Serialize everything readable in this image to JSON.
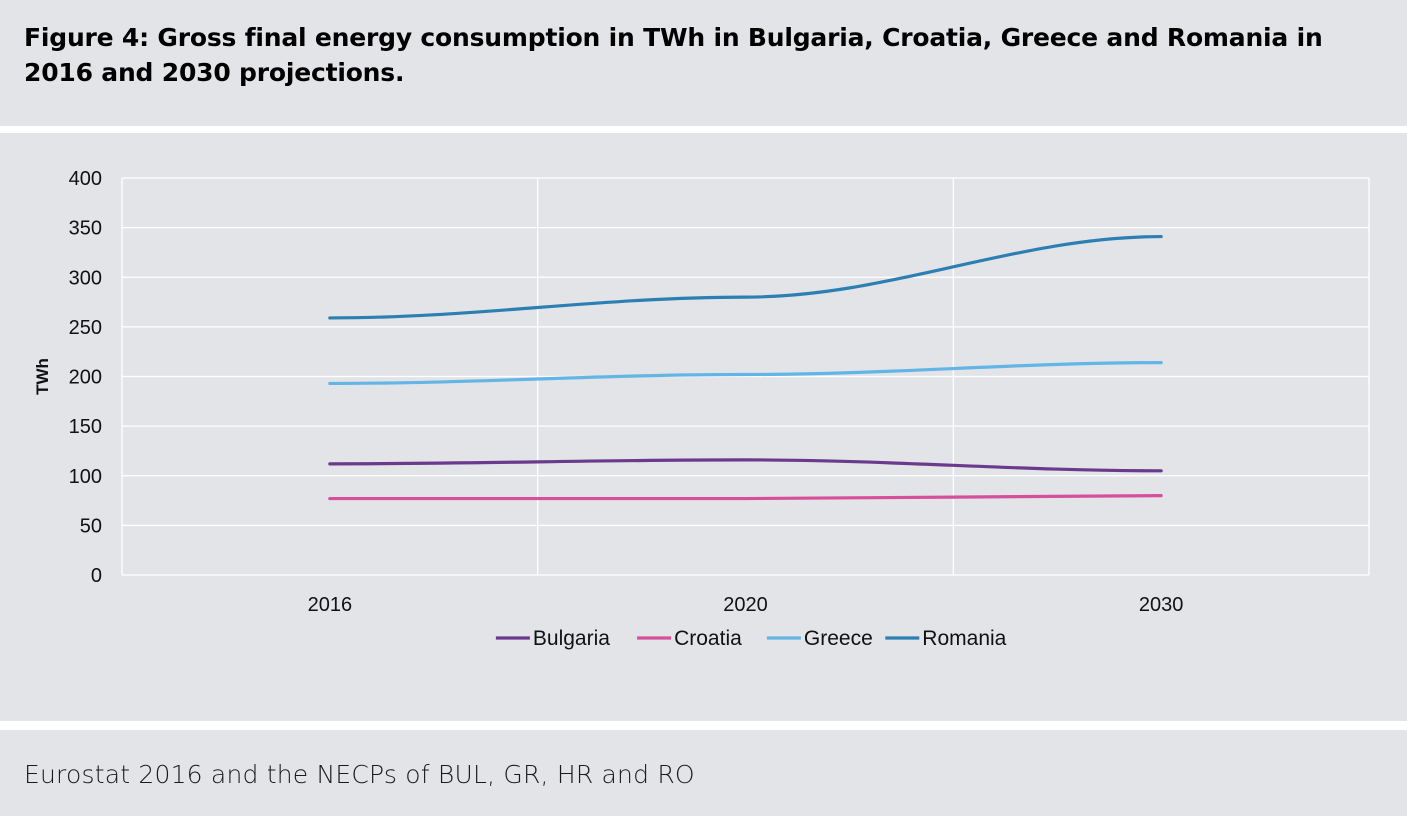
{
  "figure": {
    "title": "Figure 4: Gross final energy consumption in TWh in Bulgaria, Croatia, Greece and Romania in 2016 and 2030 projections.",
    "source": "Eurostat 2016 and the NECPs of BUL, GR, HR and RO"
  },
  "chart_data": {
    "type": "line",
    "x": [
      "2016",
      "2020",
      "2030"
    ],
    "ylabel": "TWh",
    "ylim": [
      0,
      400
    ],
    "yticks": [
      "0",
      "50",
      "100",
      "150",
      "200",
      "250",
      "300",
      "350",
      "400"
    ],
    "grid": true,
    "legend_position": "bottom",
    "series": [
      {
        "name": "Bulgaria",
        "color": "#6b3a8c",
        "values": [
          112,
          116,
          105
        ]
      },
      {
        "name": "Croatia",
        "color": "#d64f9a",
        "values": [
          77,
          77,
          80
        ]
      },
      {
        "name": "Greece",
        "color": "#63b5e6",
        "values": [
          193,
          202,
          214
        ]
      },
      {
        "name": "Romania",
        "color": "#2c7fb3",
        "values": [
          259,
          280,
          341
        ]
      }
    ]
  }
}
